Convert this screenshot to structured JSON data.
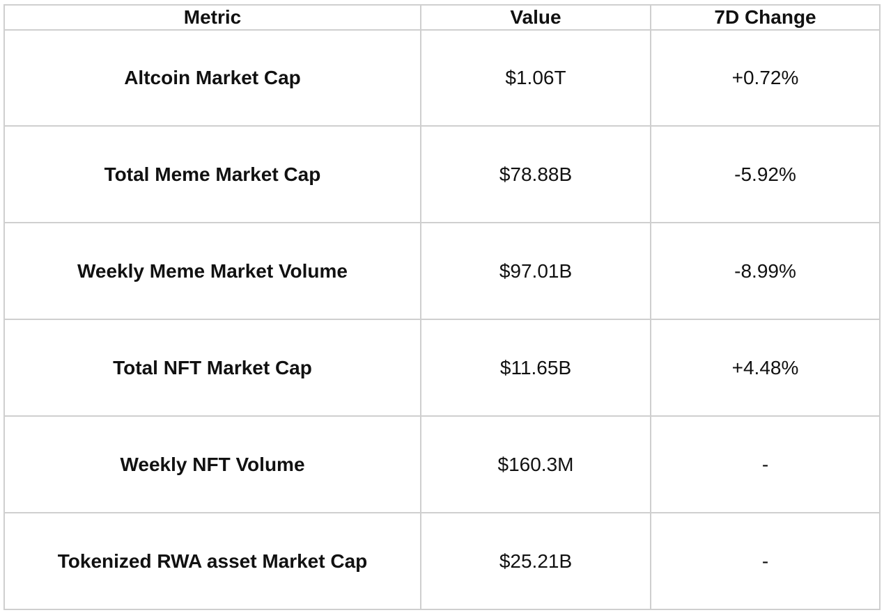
{
  "chart_data": {
    "type": "table",
    "columns": [
      "Metric",
      "Value",
      "7D Change"
    ],
    "rows": [
      [
        "Altcoin Market Cap",
        "$1.06T",
        "+0.72%"
      ],
      [
        "Total Meme Market Cap",
        "$78.88B",
        "-5.92%"
      ],
      [
        "Weekly Meme Market Volume",
        "$97.01B",
        "-8.99%"
      ],
      [
        "Total NFT Market Cap",
        "$11.65B",
        "+4.48%"
      ],
      [
        "Weekly NFT Volume",
        "$160.3M",
        "-"
      ],
      [
        "Tokenized RWA asset Market Cap",
        "$25.21B",
        "-"
      ]
    ]
  },
  "style": {
    "border_color": "#cfcfcf",
    "text_color": "#111111",
    "background": "#ffffff"
  }
}
